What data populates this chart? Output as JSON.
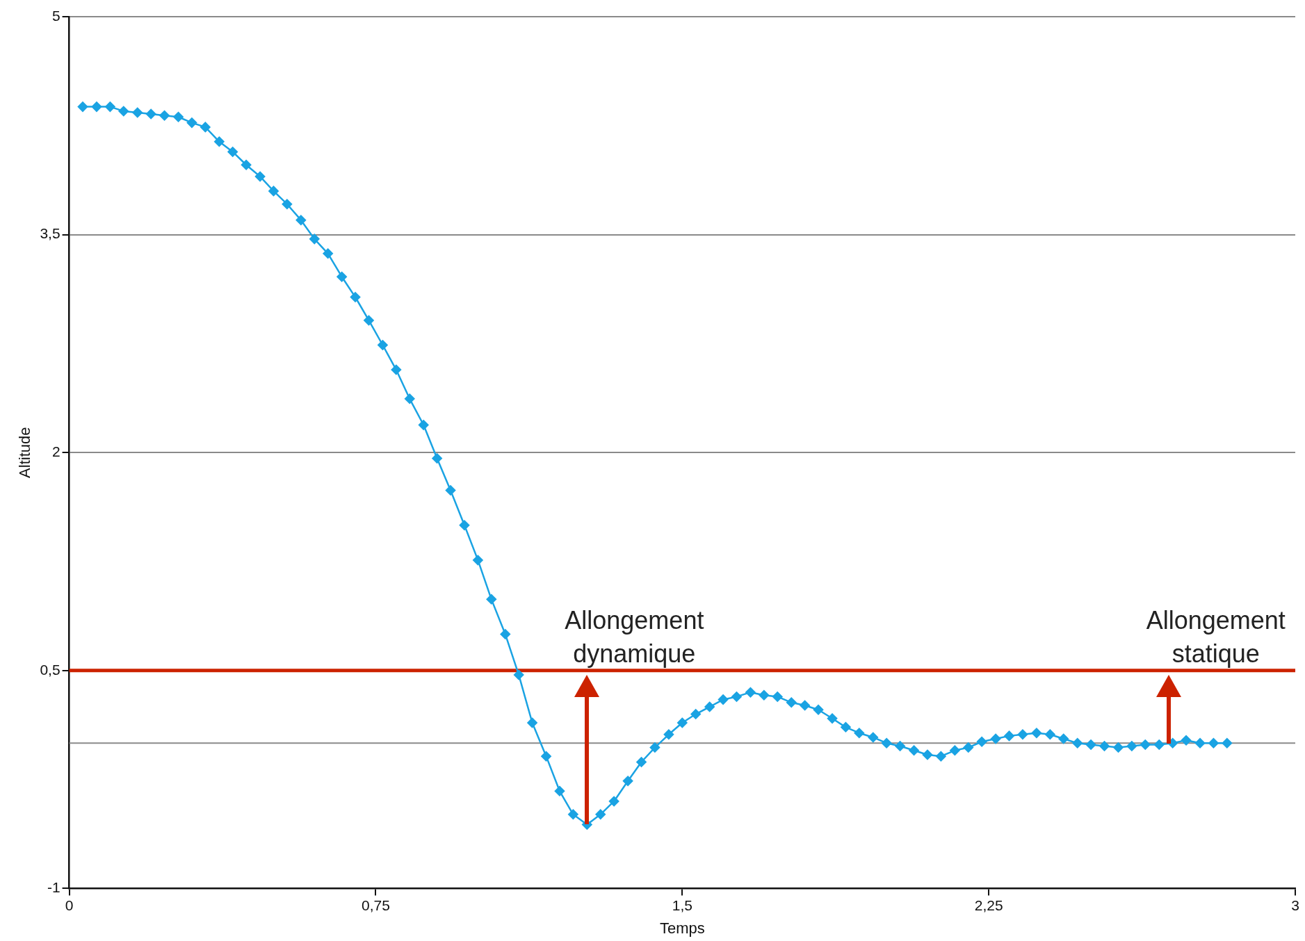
{
  "chart_data": {
    "type": "line",
    "xlabel": "Temps",
    "ylabel": "Altitude",
    "xlim": [
      0,
      3
    ],
    "xticks": [
      0,
      {
        "value": 0.75,
        "label": "0,75"
      },
      {
        "value": 1.5,
        "label": "1,5"
      },
      {
        "value": 2.25,
        "label": "2,25"
      },
      3
    ],
    "ylim": [
      -1,
      5
    ],
    "yticks": [
      -1,
      {
        "value": 0.5,
        "label": "0,5"
      },
      2,
      {
        "value": 3.5,
        "label": "3,5"
      },
      5
    ],
    "grid": "y",
    "legend": false,
    "marker": "diamond",
    "line_style": "solid",
    "x": [
      0.033,
      0.067,
      0.1,
      0.133,
      0.167,
      0.2,
      0.233,
      0.267,
      0.3,
      0.333,
      0.367,
      0.4,
      0.433,
      0.467,
      0.5,
      0.533,
      0.567,
      0.6,
      0.633,
      0.667,
      0.7,
      0.733,
      0.767,
      0.8,
      0.833,
      0.867,
      0.9,
      0.933,
      0.967,
      1.0,
      1.033,
      1.067,
      1.1,
      1.133,
      1.167,
      1.2,
      1.233,
      1.267,
      1.3,
      1.333,
      1.367,
      1.4,
      1.433,
      1.467,
      1.5,
      1.533,
      1.567,
      1.6,
      1.633,
      1.667,
      1.7,
      1.733,
      1.767,
      1.8,
      1.833,
      1.867,
      1.9,
      1.933,
      1.967,
      2.0,
      2.033,
      2.067,
      2.1,
      2.133,
      2.167,
      2.2,
      2.233,
      2.267,
      2.3,
      2.333,
      2.367,
      2.4,
      2.433,
      2.467,
      2.5,
      2.533,
      2.567,
      2.6,
      2.633,
      2.667,
      2.7,
      2.733,
      2.767,
      2.8,
      2.833
    ],
    "series": [
      {
        "color": "#1aa3e3",
        "values": [
          4.38,
          4.38,
          4.38,
          4.35,
          4.34,
          4.33,
          4.32,
          4.31,
          4.27,
          4.24,
          4.14,
          4.07,
          3.98,
          3.9,
          3.8,
          3.71,
          3.6,
          3.47,
          3.37,
          3.21,
          3.07,
          2.91,
          2.74,
          2.57,
          2.37,
          2.19,
          1.96,
          1.74,
          1.5,
          1.26,
          0.99,
          0.75,
          0.47,
          0.14,
          -0.09,
          -0.33,
          -0.49,
          -0.56,
          -0.49,
          -0.4,
          -0.26,
          -0.13,
          -0.03,
          0.06,
          0.14,
          0.2,
          0.25,
          0.3,
          0.32,
          0.35,
          0.33,
          0.32,
          0.28,
          0.26,
          0.23,
          0.17,
          0.11,
          0.07,
          0.04,
          0.0,
          -0.02,
          -0.05,
          -0.08,
          -0.09,
          -0.05,
          -0.03,
          0.01,
          0.03,
          0.05,
          0.06,
          0.07,
          0.06,
          0.03,
          0.0,
          -0.01,
          -0.02,
          -0.03,
          -0.02,
          -0.01,
          -0.01,
          0.0,
          0.02,
          0.0,
          0.0,
          0.0
        ]
      }
    ],
    "ref_lines": [
      {
        "axis": "y",
        "value": 0,
        "color": "#8a8a8a"
      },
      {
        "axis": "y",
        "value": 0.5,
        "color": "#cc2200"
      }
    ],
    "annotations": [
      {
        "text": "Allongement dynamique",
        "x": 1.267,
        "y": 0.5
      },
      {
        "text": "Allongement statique",
        "x": 2.69,
        "y": 0.5
      }
    ]
  }
}
